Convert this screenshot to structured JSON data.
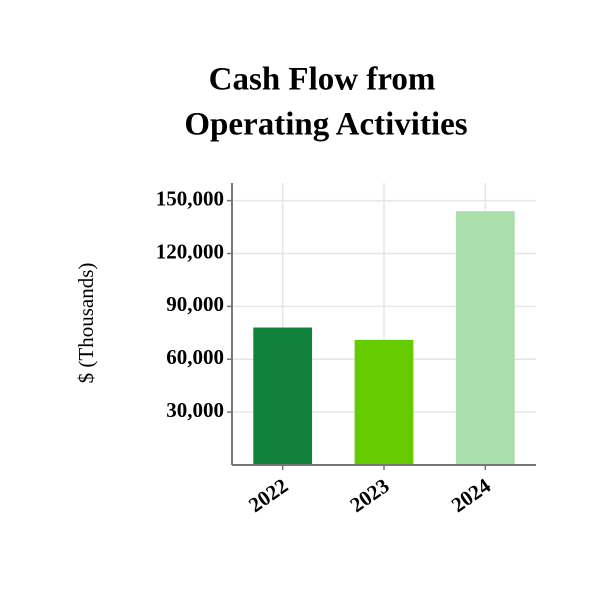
{
  "chart_data": {
    "type": "bar",
    "title": [
      "Cash Flow from",
      "Operating Activities"
    ],
    "y_label": "$ (Thousands)",
    "categories": [
      "2022",
      "2023",
      "2024"
    ],
    "values": [
      78000,
      71000,
      144000
    ],
    "colors": [
      "#11823b",
      "#66cc00",
      "#aadeaa"
    ],
    "ylim": [
      0,
      160000
    ],
    "yticks": [
      {
        "value": 30000,
        "label": "30,000"
      },
      {
        "value": 60000,
        "label": "60,000"
      },
      {
        "value": 90000,
        "label": "90,000"
      },
      {
        "value": 120000,
        "label": "120,000"
      },
      {
        "value": 150000,
        "label": "150,000"
      }
    ],
    "grid": true
  }
}
